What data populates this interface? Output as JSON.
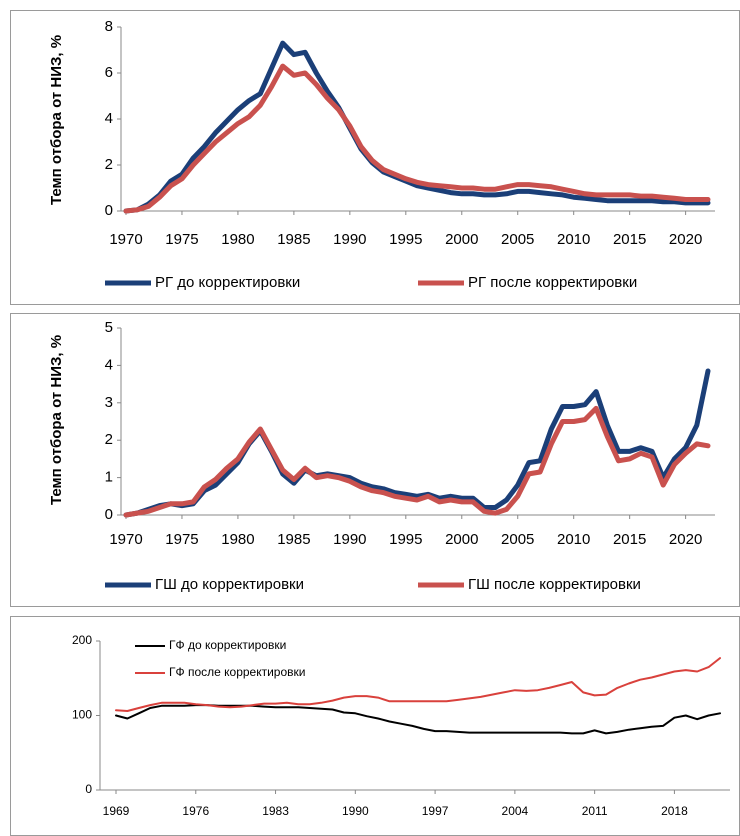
{
  "chart_data": [
    {
      "type": "line",
      "y_label": "Темп отбора от НИЗ, %",
      "x": [
        1970,
        1971,
        1972,
        1973,
        1974,
        1975,
        1976,
        1977,
        1978,
        1979,
        1980,
        1981,
        1982,
        1983,
        1984,
        1985,
        1986,
        1987,
        1988,
        1989,
        1990,
        1991,
        1992,
        1993,
        1994,
        1995,
        1996,
        1997,
        1998,
        1999,
        2000,
        2001,
        2002,
        2003,
        2004,
        2005,
        2006,
        2007,
        2008,
        2009,
        2010,
        2011,
        2012,
        2013,
        2014,
        2015,
        2016,
        2017,
        2018,
        2019,
        2020,
        2021,
        2022
      ],
      "xlim": [
        1970,
        2022
      ],
      "xticks": [
        1970,
        1975,
        1980,
        1985,
        1990,
        1995,
        2000,
        2005,
        2010,
        2015,
        2020
      ],
      "ylim": [
        0,
        8
      ],
      "yticks": [
        0,
        2,
        4,
        6,
        8
      ],
      "legend": "bottom",
      "series": [
        {
          "name": "РГ до корректировки",
          "color": "#1b3f78",
          "values": [
            0,
            0.05,
            0.3,
            0.7,
            1.3,
            1.6,
            2.3,
            2.8,
            3.4,
            3.9,
            4.4,
            4.8,
            5.1,
            6.2,
            7.3,
            6.8,
            6.9,
            6.0,
            5.2,
            4.5,
            3.6,
            2.7,
            2.1,
            1.7,
            1.5,
            1.3,
            1.1,
            1.0,
            0.9,
            0.8,
            0.75,
            0.75,
            0.7,
            0.7,
            0.75,
            0.85,
            0.85,
            0.8,
            0.75,
            0.7,
            0.6,
            0.55,
            0.5,
            0.45,
            0.45,
            0.45,
            0.45,
            0.45,
            0.4,
            0.4,
            0.35,
            0.35,
            0.35
          ]
        },
        {
          "name": "РГ после корректировки",
          "color": "#c9514e",
          "values": [
            0,
            0.05,
            0.2,
            0.6,
            1.1,
            1.4,
            2.0,
            2.5,
            3.0,
            3.4,
            3.8,
            4.1,
            4.6,
            5.4,
            6.3,
            5.9,
            6.0,
            5.5,
            4.9,
            4.4,
            3.7,
            2.8,
            2.2,
            1.8,
            1.6,
            1.4,
            1.25,
            1.15,
            1.1,
            1.05,
            1.0,
            1.0,
            0.95,
            0.95,
            1.05,
            1.15,
            1.15,
            1.1,
            1.05,
            0.95,
            0.85,
            0.75,
            0.7,
            0.7,
            0.7,
            0.7,
            0.65,
            0.65,
            0.6,
            0.55,
            0.5,
            0.5,
            0.5
          ]
        }
      ]
    },
    {
      "type": "line",
      "y_label": "Темп отбора от НИЗ, %",
      "x": [
        1970,
        1971,
        1972,
        1973,
        1974,
        1975,
        1976,
        1977,
        1978,
        1979,
        1980,
        1981,
        1982,
        1983,
        1984,
        1985,
        1986,
        1987,
        1988,
        1989,
        1990,
        1991,
        1992,
        1993,
        1994,
        1995,
        1996,
        1997,
        1998,
        1999,
        2000,
        2001,
        2002,
        2003,
        2004,
        2005,
        2006,
        2007,
        2008,
        2009,
        2010,
        2011,
        2012,
        2013,
        2014,
        2015,
        2016,
        2017,
        2018,
        2019,
        2020,
        2021,
        2022
      ],
      "xlim": [
        1970,
        2022
      ],
      "xticks": [
        1970,
        1975,
        1980,
        1985,
        1990,
        1995,
        2000,
        2005,
        2010,
        2015,
        2020
      ],
      "ylim": [
        0,
        5
      ],
      "yticks": [
        0,
        1,
        2,
        3,
        4,
        5
      ],
      "legend": "bottom",
      "series": [
        {
          "name": "ГШ до корректировки",
          "color": "#1b3f78",
          "values": [
            0,
            0.05,
            0.15,
            0.25,
            0.3,
            0.25,
            0.3,
            0.65,
            0.8,
            1.1,
            1.4,
            1.9,
            2.25,
            1.7,
            1.1,
            0.85,
            1.2,
            1.05,
            1.1,
            1.05,
            1.0,
            0.85,
            0.75,
            0.7,
            0.6,
            0.55,
            0.5,
            0.55,
            0.45,
            0.5,
            0.45,
            0.45,
            0.2,
            0.2,
            0.4,
            0.8,
            1.4,
            1.45,
            2.3,
            2.9,
            2.9,
            2.95,
            3.3,
            2.4,
            1.7,
            1.7,
            1.8,
            1.7,
            1.0,
            1.5,
            1.8,
            2.4,
            3.85
          ]
        },
        {
          "name": "ГШ после корректировки",
          "color": "#c9514e",
          "values": [
            0,
            0.05,
            0.1,
            0.2,
            0.3,
            0.3,
            0.35,
            0.75,
            0.95,
            1.25,
            1.5,
            1.95,
            2.3,
            1.75,
            1.2,
            0.95,
            1.25,
            1.0,
            1.05,
            1.0,
            0.9,
            0.75,
            0.65,
            0.6,
            0.5,
            0.45,
            0.4,
            0.5,
            0.35,
            0.4,
            0.35,
            0.35,
            0.1,
            0.05,
            0.15,
            0.5,
            1.1,
            1.15,
            1.9,
            2.5,
            2.5,
            2.55,
            2.85,
            2.1,
            1.45,
            1.5,
            1.65,
            1.55,
            0.8,
            1.35,
            1.65,
            1.9,
            1.85
          ]
        }
      ]
    },
    {
      "type": "line",
      "x": [
        1969,
        1970,
        1971,
        1972,
        1973,
        1974,
        1975,
        1976,
        1977,
        1978,
        1979,
        1980,
        1981,
        1982,
        1983,
        1984,
        1985,
        1986,
        1987,
        1988,
        1989,
        1990,
        1991,
        1992,
        1993,
        1994,
        1995,
        1996,
        1997,
        1998,
        1999,
        2000,
        2001,
        2002,
        2003,
        2004,
        2005,
        2006,
        2007,
        2008,
        2009,
        2010,
        2011,
        2012,
        2013,
        2014,
        2015,
        2016,
        2017,
        2018,
        2019,
        2020,
        2021,
        2022
      ],
      "xlim": [
        1969,
        2022
      ],
      "xticks": [
        1969,
        1976,
        1983,
        1990,
        1997,
        2004,
        2011,
        2018
      ],
      "ylim": [
        0,
        200
      ],
      "yticks": [
        0,
        100,
        200
      ],
      "legend": "upper left",
      "series": [
        {
          "name": "ГФ до корректировки",
          "color": "#000000",
          "values": [
            100,
            96,
            103,
            110,
            113,
            113,
            113,
            114,
            114,
            113,
            113,
            113,
            113,
            112,
            111,
            111,
            111,
            110,
            109,
            108,
            104,
            103,
            99,
            96,
            92,
            89,
            86,
            82,
            79,
            79,
            78,
            77,
            77,
            77,
            77,
            77,
            77,
            77,
            77,
            77,
            76,
            76,
            80,
            76,
            78,
            81,
            83,
            85,
            86,
            97,
            100,
            95,
            100,
            103
          ]
        },
        {
          "name": "ГФ после корректировки",
          "color": "#d9413c",
          "values": [
            107,
            106,
            110,
            114,
            117,
            117,
            117,
            115,
            114,
            112,
            111,
            112,
            114,
            116,
            116,
            117,
            115,
            115,
            117,
            120,
            124,
            126,
            126,
            124,
            119,
            119,
            119,
            119,
            119,
            119,
            121,
            123,
            125,
            128,
            131,
            134,
            133,
            134,
            137,
            141,
            145,
            131,
            127,
            128,
            137,
            143,
            148,
            151,
            155,
            159,
            161,
            159,
            165,
            177
          ]
        }
      ]
    }
  ]
}
